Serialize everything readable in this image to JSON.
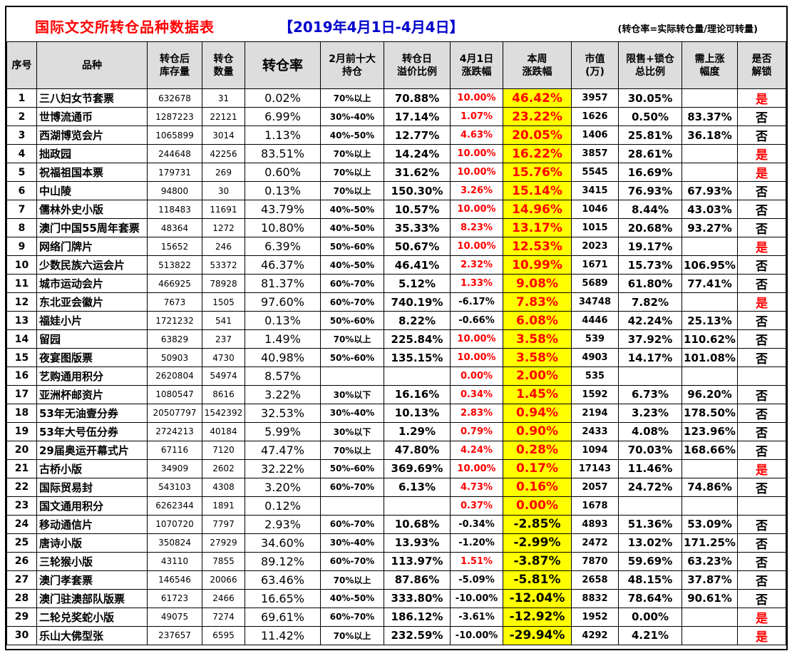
{
  "title": {
    "main": "国际文交所转仓品种数据表",
    "date": "【2019年4月1日-4月4日】",
    "note": "(转仓率=实际转仓量/理论可转量)"
  },
  "headers": {
    "no": "序号",
    "name": "品种",
    "stock": "转仓后\n库存量",
    "trans": "转仓\n数量",
    "rate": "转仓率",
    "holders": "2月前十大\n持仓",
    "premium": "转仓日\n溢价比例",
    "apr1": "4月1日\n涨跌幅",
    "week": "本周\n涨跌幅",
    "cap": "市值\n(万)",
    "ratio": "限售+锁仓\n总比例",
    "need": "需上涨\n幅度",
    "unlock": "是否\n解锁"
  },
  "rows": [
    {
      "no": "1",
      "name": "三八妇女节套票",
      "stock": "632678",
      "trans": "31",
      "rate": "0.02%",
      "holders": "70%以上",
      "premium": "70.88%",
      "apr1": "10.00%",
      "week": "46.42%",
      "cap": "3957",
      "ratio": "30.05%",
      "need": "",
      "unlock": "是"
    },
    {
      "no": "2",
      "name": "世博流通币",
      "stock": "1287223",
      "trans": "22121",
      "rate": "6.99%",
      "holders": "30%-40%",
      "premium": "17.14%",
      "apr1": "1.07%",
      "week": "23.22%",
      "cap": "1626",
      "ratio": "0.50%",
      "need": "83.37%",
      "unlock": "否"
    },
    {
      "no": "3",
      "name": "西湖博览会片",
      "stock": "1065899",
      "trans": "3014",
      "rate": "1.13%",
      "holders": "40%-50%",
      "premium": "12.77%",
      "apr1": "4.63%",
      "week": "20.05%",
      "cap": "1406",
      "ratio": "25.81%",
      "need": "36.18%",
      "unlock": "否"
    },
    {
      "no": "4",
      "name": "拙政园",
      "stock": "244648",
      "trans": "42256",
      "rate": "83.51%",
      "holders": "70%以上",
      "premium": "14.24%",
      "apr1": "10.00%",
      "week": "16.22%",
      "cap": "3857",
      "ratio": "28.61%",
      "need": "",
      "unlock": "是"
    },
    {
      "no": "5",
      "name": "祝福祖国本票",
      "stock": "179731",
      "trans": "269",
      "rate": "0.60%",
      "holders": "70%以上",
      "premium": "31.62%",
      "apr1": "10.00%",
      "week": "15.76%",
      "cap": "5545",
      "ratio": "16.69%",
      "need": "",
      "unlock": "是"
    },
    {
      "no": "6",
      "name": "中山陵",
      "stock": "94800",
      "trans": "30",
      "rate": "0.13%",
      "holders": "70%以上",
      "premium": "150.30%",
      "apr1": "3.26%",
      "week": "15.14%",
      "cap": "3415",
      "ratio": "76.93%",
      "need": "67.93%",
      "unlock": "否"
    },
    {
      "no": "7",
      "name": "儒林外史小版",
      "stock": "118483",
      "trans": "11691",
      "rate": "43.79%",
      "holders": "40%-50%",
      "premium": "10.57%",
      "apr1": "10.00%",
      "week": "14.96%",
      "cap": "1046",
      "ratio": "8.44%",
      "need": "43.03%",
      "unlock": "否"
    },
    {
      "no": "8",
      "name": "澳门中国55周年套票",
      "stock": "48364",
      "trans": "1272",
      "rate": "10.80%",
      "holders": "40%-50%",
      "premium": "35.33%",
      "apr1": "8.23%",
      "week": "13.17%",
      "cap": "1015",
      "ratio": "20.68%",
      "need": "93.27%",
      "unlock": "否"
    },
    {
      "no": "9",
      "name": "网络门牌片",
      "stock": "15652",
      "trans": "246",
      "rate": "6.39%",
      "holders": "50%-60%",
      "premium": "50.67%",
      "apr1": "10.00%",
      "week": "12.53%",
      "cap": "2023",
      "ratio": "19.17%",
      "need": "",
      "unlock": "是"
    },
    {
      "no": "10",
      "name": "少数民族六运会片",
      "stock": "513822",
      "trans": "53372",
      "rate": "46.37%",
      "holders": "40%-50%",
      "premium": "46.41%",
      "apr1": "2.32%",
      "week": "10.99%",
      "cap": "1671",
      "ratio": "15.73%",
      "need": "106.95%",
      "unlock": "否"
    },
    {
      "no": "11",
      "name": "城市运动会片",
      "stock": "466925",
      "trans": "78928",
      "rate": "81.37%",
      "holders": "60%-70%",
      "premium": "5.12%",
      "apr1": "1.33%",
      "week": "9.08%",
      "cap": "5689",
      "ratio": "61.80%",
      "need": "77.41%",
      "unlock": "否"
    },
    {
      "no": "12",
      "name": "东北亚会徽片",
      "stock": "7673",
      "trans": "1505",
      "rate": "97.60%",
      "holders": "60%-70%",
      "premium": "740.19%",
      "apr1": "-6.17%",
      "week": "7.83%",
      "cap": "34748",
      "ratio": "7.82%",
      "need": "",
      "unlock": "是"
    },
    {
      "no": "13",
      "name": "福娃小片",
      "stock": "1721232",
      "trans": "541",
      "rate": "0.13%",
      "holders": "50%-60%",
      "premium": "8.22%",
      "apr1": "-0.66%",
      "week": "6.08%",
      "cap": "4446",
      "ratio": "42.24%",
      "need": "25.13%",
      "unlock": "否"
    },
    {
      "no": "14",
      "name": "留园",
      "stock": "63829",
      "trans": "237",
      "rate": "1.49%",
      "holders": "70%以上",
      "premium": "225.84%",
      "apr1": "10.00%",
      "week": "3.58%",
      "cap": "539",
      "ratio": "37.92%",
      "need": "110.62%",
      "unlock": "否"
    },
    {
      "no": "15",
      "name": "夜宴图版票",
      "stock": "50903",
      "trans": "4730",
      "rate": "40.98%",
      "holders": "50%-60%",
      "premium": "135.15%",
      "apr1": "10.00%",
      "week": "3.58%",
      "cap": "4903",
      "ratio": "14.17%",
      "need": "101.08%",
      "unlock": "否"
    },
    {
      "no": "16",
      "name": "艺购通用积分",
      "stock": "2620804",
      "trans": "54974",
      "rate": "8.57%",
      "holders": "",
      "premium": "",
      "apr1": "0.00%",
      "week": "2.00%",
      "cap": "535",
      "ratio": "",
      "need": "",
      "unlock": ""
    },
    {
      "no": "17",
      "name": "亚洲杯邮资片",
      "stock": "1080547",
      "trans": "8616",
      "rate": "3.22%",
      "holders": "30%以下",
      "premium": "16.16%",
      "apr1": "0.34%",
      "week": "1.45%",
      "cap": "1592",
      "ratio": "6.73%",
      "need": "96.20%",
      "unlock": "否"
    },
    {
      "no": "18",
      "name": "53年无油壹分券",
      "stock": "20507797",
      "trans": "1542392",
      "rate": "32.53%",
      "holders": "30%-40%",
      "premium": "10.13%",
      "apr1": "2.83%",
      "week": "0.94%",
      "cap": "2194",
      "ratio": "3.23%",
      "need": "178.50%",
      "unlock": "否"
    },
    {
      "no": "19",
      "name": "53年大号伍分券",
      "stock": "2724213",
      "trans": "40184",
      "rate": "5.99%",
      "holders": "30%以下",
      "premium": "1.29%",
      "apr1": "0.79%",
      "week": "0.90%",
      "cap": "2433",
      "ratio": "4.08%",
      "need": "123.96%",
      "unlock": "否"
    },
    {
      "no": "20",
      "name": "29届奥运开幕式片",
      "stock": "67116",
      "trans": "7120",
      "rate": "47.47%",
      "holders": "70%以上",
      "premium": "47.80%",
      "apr1": "4.24%",
      "week": "0.28%",
      "cap": "1094",
      "ratio": "70.03%",
      "need": "168.66%",
      "unlock": "否"
    },
    {
      "no": "21",
      "name": "古桥小版",
      "stock": "34909",
      "trans": "2602",
      "rate": "32.22%",
      "holders": "50%-60%",
      "premium": "369.69%",
      "apr1": "10.00%",
      "week": "0.17%",
      "cap": "17143",
      "ratio": "11.46%",
      "need": "",
      "unlock": "是"
    },
    {
      "no": "22",
      "name": "国际贸易封",
      "stock": "543103",
      "trans": "4308",
      "rate": "3.20%",
      "holders": "60%-70%",
      "premium": "6.13%",
      "apr1": "4.73%",
      "week": "0.16%",
      "cap": "2057",
      "ratio": "24.72%",
      "need": "74.86%",
      "unlock": "否"
    },
    {
      "no": "23",
      "name": "国文通用积分",
      "stock": "6262344",
      "trans": "1891",
      "rate": "0.12%",
      "holders": "",
      "premium": "",
      "apr1": "0.37%",
      "week": "0.00%",
      "cap": "1678",
      "ratio": "",
      "need": "",
      "unlock": ""
    },
    {
      "no": "24",
      "name": "移动通信片",
      "stock": "1070720",
      "trans": "7797",
      "rate": "2.93%",
      "holders": "60%-70%",
      "premium": "10.68%",
      "apr1": "-0.34%",
      "week": "-2.85%",
      "cap": "4893",
      "ratio": "51.36%",
      "need": "53.09%",
      "unlock": "否"
    },
    {
      "no": "25",
      "name": "唐诗小版",
      "stock": "350824",
      "trans": "27929",
      "rate": "34.60%",
      "holders": "30%-40%",
      "premium": "13.93%",
      "apr1": "-1.20%",
      "week": "-2.99%",
      "cap": "2472",
      "ratio": "13.02%",
      "need": "171.25%",
      "unlock": "否"
    },
    {
      "no": "26",
      "name": "三轮猴小版",
      "stock": "43110",
      "trans": "7855",
      "rate": "89.12%",
      "holders": "60%-70%",
      "premium": "113.97%",
      "apr1": "1.51%",
      "week": "-3.87%",
      "cap": "7870",
      "ratio": "59.69%",
      "need": "63.23%",
      "unlock": "否"
    },
    {
      "no": "27",
      "name": "澳门孝套票",
      "stock": "146546",
      "trans": "20066",
      "rate": "63.46%",
      "holders": "70%以上",
      "premium": "87.86%",
      "apr1": "-5.09%",
      "week": "-5.81%",
      "cap": "2658",
      "ratio": "48.15%",
      "need": "37.87%",
      "unlock": "否"
    },
    {
      "no": "28",
      "name": "澳门驻澳部队版票",
      "stock": "61723",
      "trans": "2466",
      "rate": "16.65%",
      "holders": "40%-50%",
      "premium": "333.80%",
      "apr1": "-10.00%",
      "week": "-12.04%",
      "cap": "8832",
      "ratio": "78.64%",
      "need": "90.61%",
      "unlock": "否"
    },
    {
      "no": "29",
      "name": "二轮兑奖蛇小版",
      "stock": "49075",
      "trans": "7274",
      "rate": "69.61%",
      "holders": "60%-70%",
      "premium": "186.12%",
      "apr1": "-3.61%",
      "week": "-12.92%",
      "cap": "1952",
      "ratio": "0.00%",
      "need": "",
      "unlock": "是"
    },
    {
      "no": "30",
      "name": "乐山大佛型张",
      "stock": "237657",
      "trans": "6595",
      "rate": "11.42%",
      "holders": "70%以上",
      "premium": "232.59%",
      "apr1": "-10.00%",
      "week": "-29.94%",
      "cap": "4292",
      "ratio": "4.21%",
      "need": "",
      "unlock": "是"
    }
  ],
  "colors": {
    "positive": "#ff0000",
    "highlight": "#ffff00",
    "header_bg": "#dddddd",
    "title_main": "#ff0000",
    "title_date": "#0000cc"
  }
}
